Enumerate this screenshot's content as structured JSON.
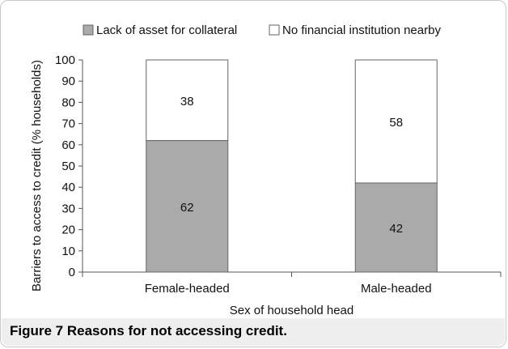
{
  "figure": {
    "label": "Figure 7",
    "caption": "Reasons for not accessing credit."
  },
  "chart_data": {
    "type": "bar",
    "stacked": true,
    "categories": [
      "Female-headed",
      "Male-headed"
    ],
    "series": [
      {
        "name": "Lack of asset for collateral",
        "values": [
          62,
          42
        ],
        "color": "#aaaaaa"
      },
      {
        "name": "No financial institution nearby",
        "values": [
          38,
          58
        ],
        "color": "#ffffff"
      }
    ],
    "xlabel": "Sex of household head",
    "ylabel": "Barriers to access to credit (% households)",
    "ylim": [
      0,
      100
    ],
    "yticks": [
      0,
      10,
      20,
      30,
      40,
      50,
      60,
      70,
      80,
      90,
      100
    ],
    "grid": false,
    "legend_position": "top"
  }
}
